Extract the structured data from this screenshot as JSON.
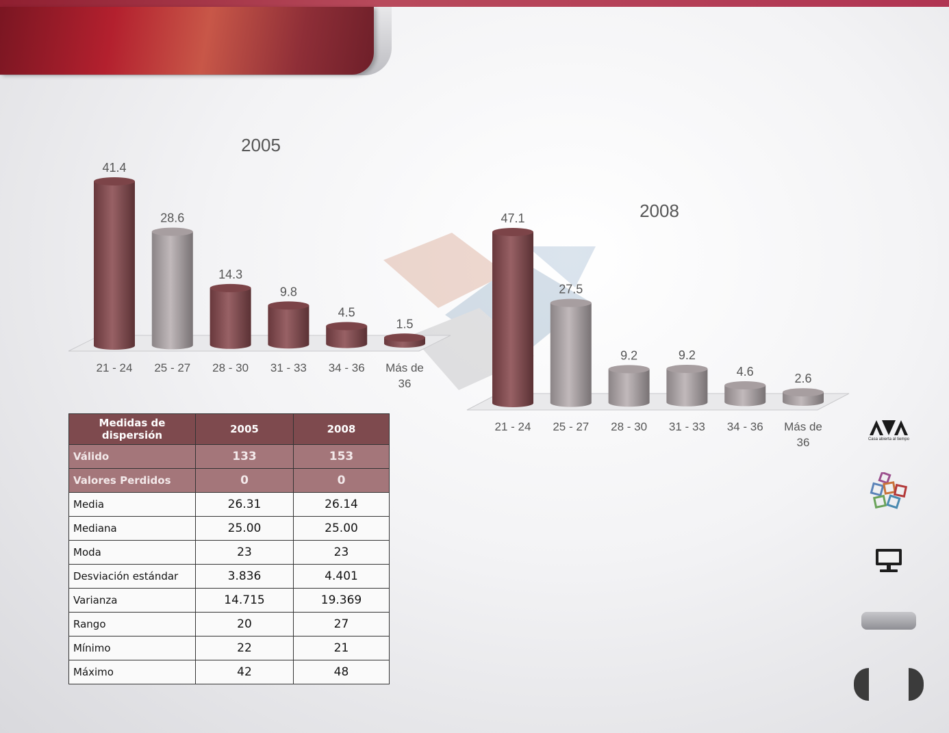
{
  "chart_data": [
    {
      "type": "bar",
      "title": "2005",
      "categories": [
        "21 - 24",
        "25 - 27",
        "28 - 30",
        "31 - 33",
        "34 - 36",
        "Más de 36"
      ],
      "values": [
        41.4,
        28.6,
        14.3,
        9.8,
        4.5,
        1.5
      ],
      "highlight_index": 1,
      "colors": {
        "main": "#8a4b50",
        "highlight": "#b9b0b2"
      },
      "ylim": [
        0,
        41.4
      ],
      "grid": false,
      "legend": "none"
    },
    {
      "type": "bar",
      "title": "2008",
      "categories": [
        "21 - 24",
        "25 - 27",
        "28 - 30",
        "31 - 33",
        "34 - 36",
        "Más de 36"
      ],
      "values": [
        47.1,
        27.5,
        9.2,
        9.2,
        4.6,
        2.6
      ],
      "highlight_index": 0,
      "colors": {
        "main": "#b9b0b2",
        "highlight": "#8a4b50"
      },
      "ylim": [
        0,
        47.1
      ],
      "grid": false,
      "legend": "none"
    }
  ],
  "table": {
    "headers": [
      "Medidas de dispersión",
      "2005",
      "2008"
    ],
    "rows": [
      {
        "label": "Válido",
        "v2005": "133",
        "v2008": "153",
        "highlight": true
      },
      {
        "label": "Valores Perdidos",
        "v2005": "0",
        "v2008": "0",
        "highlight": true
      },
      {
        "label": "Media",
        "v2005": "26.31",
        "v2008": "26.14"
      },
      {
        "label": "Mediana",
        "v2005": "25.00",
        "v2008": "25.00"
      },
      {
        "label": "Moda",
        "v2005": "23",
        "v2008": "23"
      },
      {
        "label": "Desviación estándar",
        "v2005": "3.836",
        "v2008": "4.401"
      },
      {
        "label": "Varianza",
        "v2005": "14.715",
        "v2008": "19.369"
      },
      {
        "label": "Rango",
        "v2005": "20",
        "v2008": "27"
      },
      {
        "label": "Mínimo",
        "v2005": "22",
        "v2008": "21"
      },
      {
        "label": "Máximo",
        "v2005": "42",
        "v2008": "48"
      }
    ]
  },
  "sidebar": {
    "logo_caption": "Casa abierta al tiempo",
    "icons": [
      "uam-logo-icon",
      "colored-tiles-logo-icon",
      "monitor-icon",
      "nav-pill",
      "prev-button",
      "next-button"
    ]
  }
}
